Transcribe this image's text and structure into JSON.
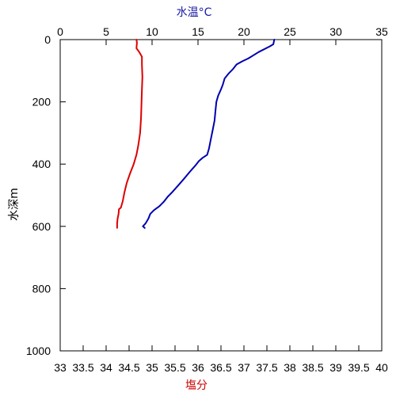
{
  "chart_data": {
    "type": "line",
    "top_axis": {
      "title": "水温°C",
      "title_color": "#1a1aa6",
      "range": [
        0,
        35
      ],
      "ticks": [
        0,
        5,
        10,
        15,
        20,
        25,
        30,
        35
      ]
    },
    "bottom_axis": {
      "title": "塩分",
      "title_color": "#cc0000",
      "range": [
        33,
        40
      ],
      "ticks": [
        "33",
        "33.5",
        "34",
        "34.5",
        "35",
        "35.5",
        "36",
        "36.5",
        "37",
        "37.5",
        "38",
        "38.5",
        "39",
        "39.5",
        "40"
      ]
    },
    "left_axis": {
      "title": "水深m",
      "range": [
        0,
        1000
      ],
      "reversed": true,
      "ticks": [
        0,
        200,
        400,
        600,
        800,
        1000
      ]
    },
    "series": [
      {
        "axis": "top",
        "color": "#0000b0",
        "points": [
          [
            23.3,
            0
          ],
          [
            23.2,
            15
          ],
          [
            22.8,
            22
          ],
          [
            21.6,
            40
          ],
          [
            20.5,
            60
          ],
          [
            19.8,
            70
          ],
          [
            19.2,
            80
          ],
          [
            18.8,
            95
          ],
          [
            18.3,
            110
          ],
          [
            17.9,
            125
          ],
          [
            17.7,
            145
          ],
          [
            17.5,
            160
          ],
          [
            17.2,
            180
          ],
          [
            17.0,
            200
          ],
          [
            16.9,
            230
          ],
          [
            16.8,
            260
          ],
          [
            16.6,
            290
          ],
          [
            16.4,
            320
          ],
          [
            16.2,
            350
          ],
          [
            16.0,
            370
          ],
          [
            15.5,
            380
          ],
          [
            15.1,
            390
          ],
          [
            14.7,
            405
          ],
          [
            14.1,
            425
          ],
          [
            13.4,
            450
          ],
          [
            12.8,
            470
          ],
          [
            12.2,
            490
          ],
          [
            11.7,
            505
          ],
          [
            11.3,
            520
          ],
          [
            10.8,
            535
          ],
          [
            10.2,
            548
          ],
          [
            9.8,
            560
          ],
          [
            9.6,
            575
          ],
          [
            9.3,
            590
          ],
          [
            9.0,
            600
          ],
          [
            9.2,
            605
          ]
        ]
      },
      {
        "axis": "bottom",
        "color": "#dd0000",
        "points": [
          [
            34.66,
            0
          ],
          [
            34.67,
            10
          ],
          [
            34.66,
            28
          ],
          [
            34.72,
            40
          ],
          [
            34.78,
            55
          ],
          [
            34.78,
            80
          ],
          [
            34.79,
            120
          ],
          [
            34.78,
            160
          ],
          [
            34.77,
            200
          ],
          [
            34.76,
            250
          ],
          [
            34.74,
            300
          ],
          [
            34.7,
            340
          ],
          [
            34.66,
            370
          ],
          [
            34.6,
            400
          ],
          [
            34.52,
            430
          ],
          [
            34.45,
            460
          ],
          [
            34.4,
            490
          ],
          [
            34.36,
            520
          ],
          [
            34.32,
            540
          ],
          [
            34.28,
            545
          ],
          [
            34.27,
            560
          ],
          [
            34.25,
            575
          ],
          [
            34.24,
            590
          ],
          [
            34.24,
            605
          ]
        ]
      }
    ]
  }
}
